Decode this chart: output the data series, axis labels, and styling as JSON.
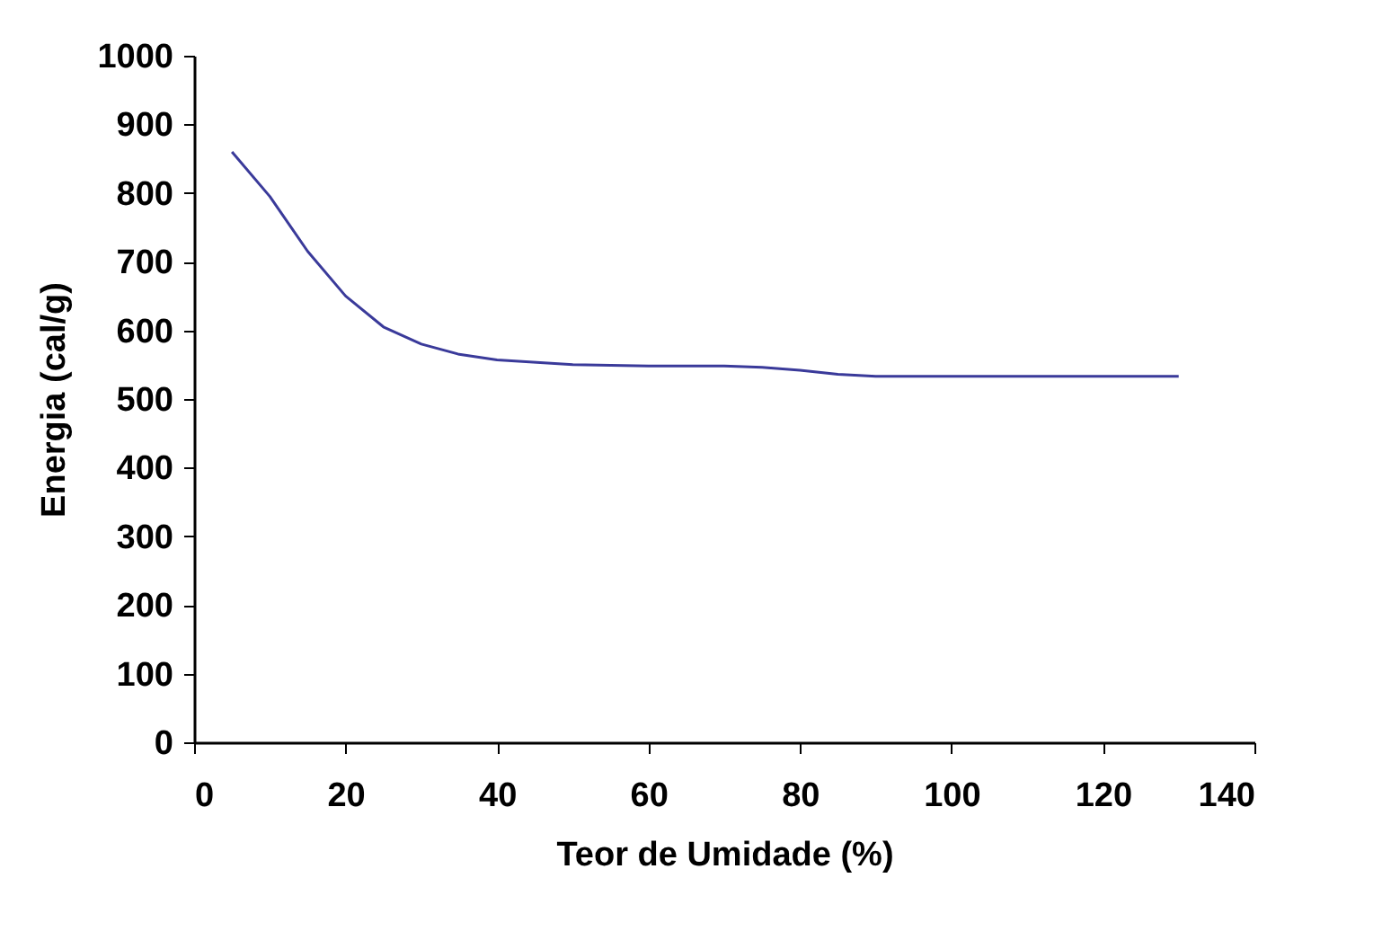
{
  "chart_data": {
    "type": "line",
    "xlabel": "Teor de Umidade (%)",
    "ylabel": "Energia (cal/g)",
    "x": [
      5,
      10,
      15,
      20,
      25,
      30,
      35,
      40,
      50,
      60,
      70,
      75,
      80,
      85,
      90,
      100,
      110,
      120,
      130
    ],
    "series": [
      {
        "color": "#3a3a9a",
        "values": [
          860,
          795,
          715,
          650,
          605,
          580,
          565,
          557,
          550,
          548,
          548,
          546,
          542,
          536,
          533,
          533,
          533,
          533,
          533
        ]
      }
    ],
    "xlim": [
      0,
      140
    ],
    "xticks": [
      0,
      20,
      40,
      60,
      80,
      100,
      120,
      140
    ],
    "ylim": [
      0,
      1000
    ],
    "yticks": [
      0,
      100,
      200,
      300,
      400,
      500,
      600,
      700,
      800,
      900,
      1000
    ],
    "grid": false,
    "marker": "none",
    "line_style": "solid"
  }
}
